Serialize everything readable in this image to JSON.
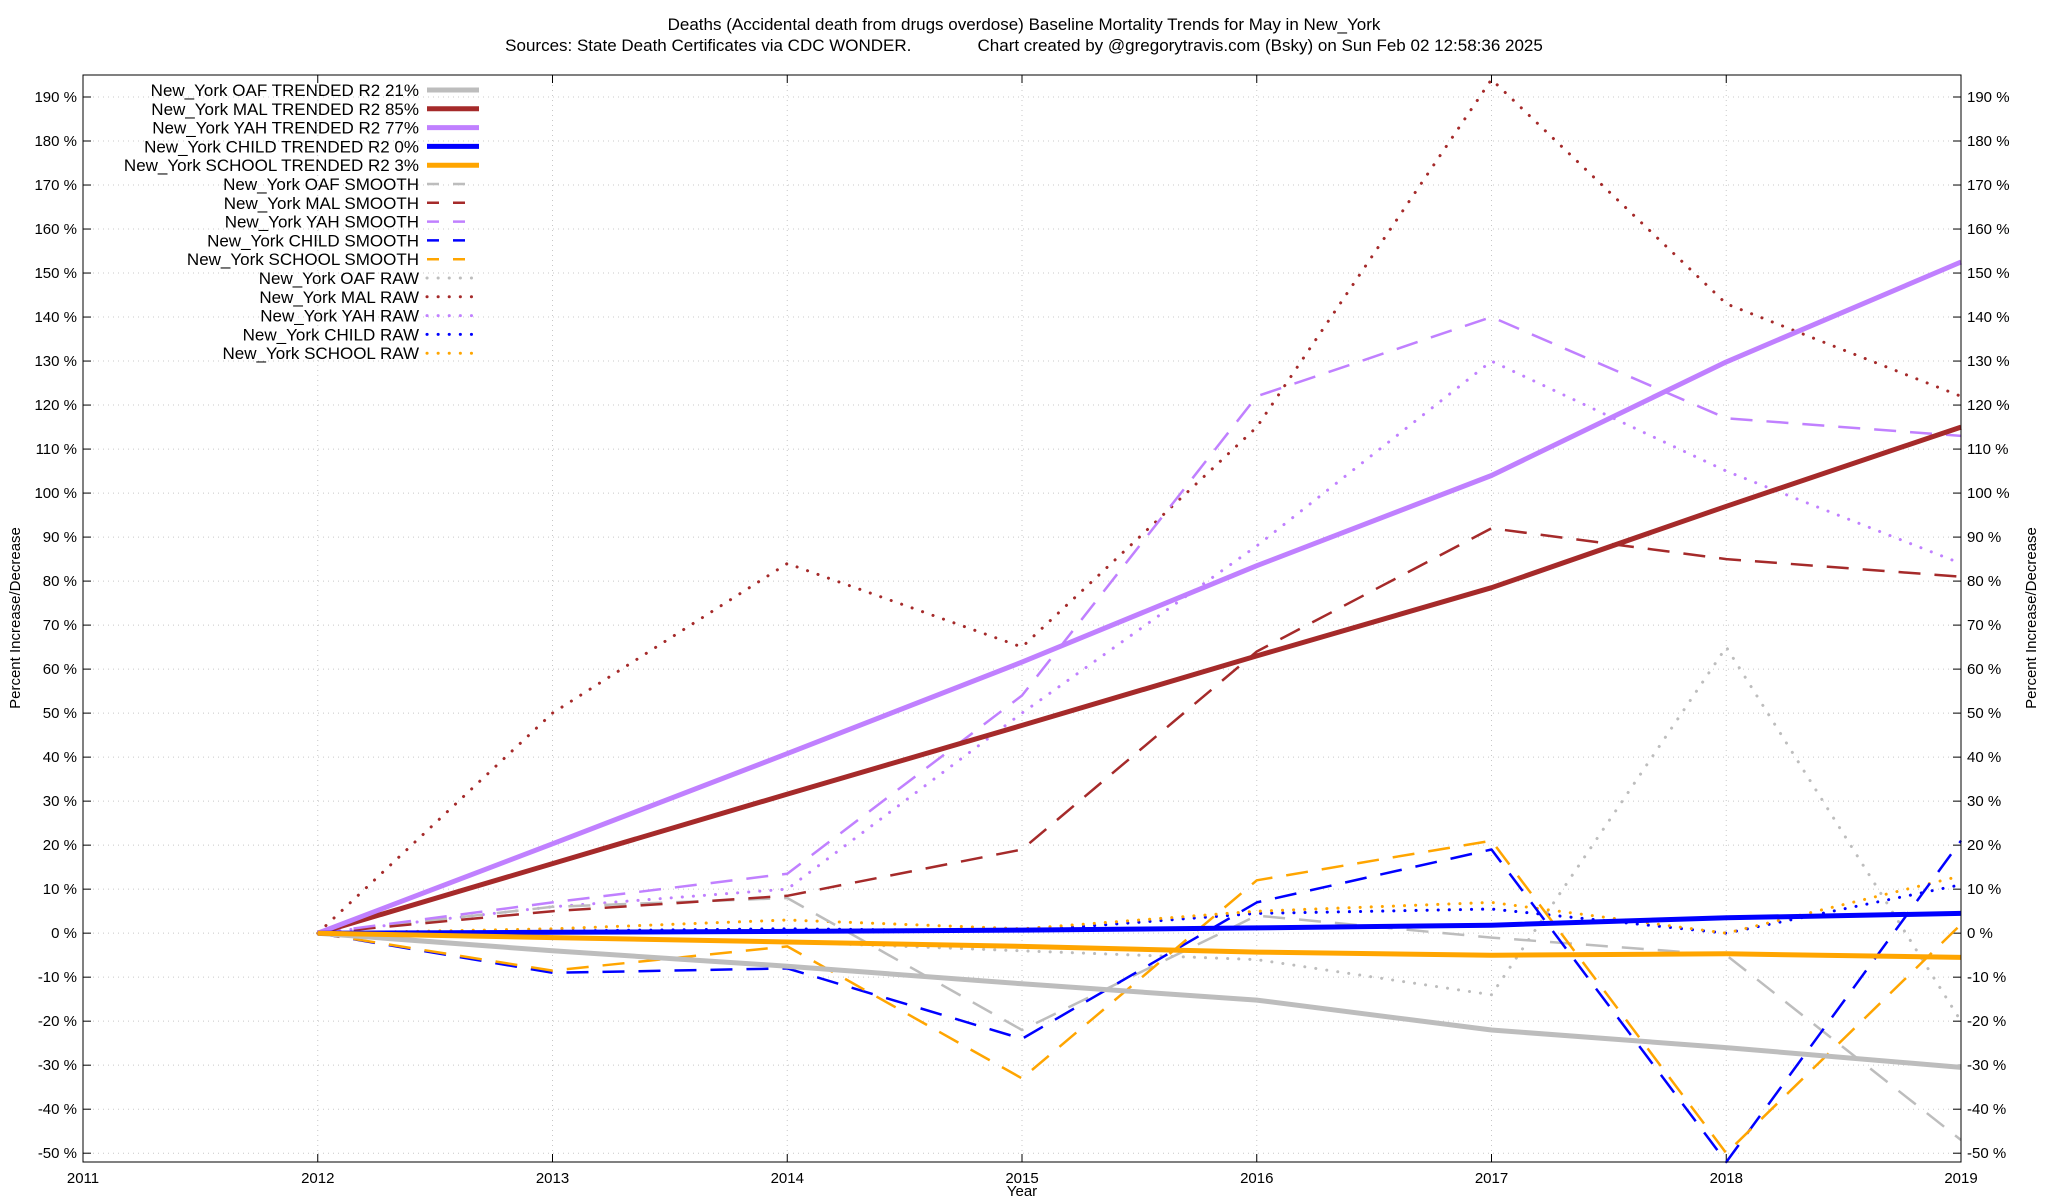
{
  "chart_data": {
    "type": "line",
    "title": "Deaths (Accidental death from drugs overdose)  Baseline Mortality Trends for May in New_York",
    "subtitle": "Sources: State Death Certificates via CDC WONDER.              Chart created by @gregorytravis.com (Bsky) on Sun Feb 02 12:58:36 2025",
    "xlabel": "Year",
    "ylabel": "Percent Increase/Decrease",
    "ylabel_right": "Percent Increase/Decrease",
    "xlim": [
      2011,
      2019
    ],
    "ylim": [
      -52,
      195
    ],
    "x_ticks": [
      "2011",
      "2012",
      "2013",
      "2014",
      "2015",
      "2016",
      "2017",
      "2018",
      "2019"
    ],
    "y_ticks": [
      {
        "value": 190,
        "label": "190 %"
      },
      {
        "value": 180,
        "label": "180 %"
      },
      {
        "value": 170,
        "label": "170 %"
      },
      {
        "value": 160,
        "label": "160 %"
      },
      {
        "value": 150,
        "label": "150 %"
      },
      {
        "value": 140,
        "label": "140 %"
      },
      {
        "value": 130,
        "label": "130 %"
      },
      {
        "value": 120,
        "label": "120 %"
      },
      {
        "value": 110,
        "label": "110 %"
      },
      {
        "value": 100,
        "label": "100 %"
      },
      {
        "value": 90,
        "label": "90 %"
      },
      {
        "value": 80,
        "label": "80 %"
      },
      {
        "value": 70,
        "label": "70 %"
      },
      {
        "value": 60,
        "label": "60 %"
      },
      {
        "value": 50,
        "label": "50 %"
      },
      {
        "value": 40,
        "label": "40 %"
      },
      {
        "value": 30,
        "label": "30 %"
      },
      {
        "value": 20,
        "label": "20 %"
      },
      {
        "value": 10,
        "label": "10 %"
      },
      {
        "value": 0,
        "label": "0 %"
      },
      {
        "value": -10,
        "label": "-10 %"
      },
      {
        "value": -20,
        "label": "-20 %"
      },
      {
        "value": -30,
        "label": "-30 %"
      },
      {
        "value": -40,
        "label": "-40 %"
      },
      {
        "value": -50,
        "label": "-50 %"
      }
    ],
    "grid": true,
    "legend_position": "top-left",
    "series": [
      {
        "name": "New_York OAF TRENDED R2  21%",
        "style": "solid",
        "color": "#bdbdbd",
        "x": [
          2012,
          2013,
          2014,
          2015,
          2016,
          2017,
          2018,
          2019
        ],
        "y": [
          0,
          -4,
          -7.5,
          -11.5,
          -15.2,
          -22,
          -26,
          -30.5
        ]
      },
      {
        "name": "New_York MAL TRENDED R2  85%",
        "style": "solid",
        "color": "#a52a2a",
        "x": [
          2012,
          2013,
          2014,
          2015,
          2016,
          2017,
          2018,
          2019
        ],
        "y": [
          0,
          15.8,
          31.6,
          47.2,
          63,
          78.5,
          97,
          115
        ]
      },
      {
        "name": "New_York YAH TRENDED R2  77%",
        "style": "solid",
        "color": "#c080ff",
        "x": [
          2012,
          2013,
          2014,
          2015,
          2016,
          2017,
          2018,
          2019
        ],
        "y": [
          0,
          20.3,
          40.8,
          61.6,
          83.5,
          104,
          129.8,
          152.5
        ]
      },
      {
        "name": "New_York CHILD TRENDED R2   0%",
        "style": "solid",
        "color": "#0000ff",
        "x": [
          2012,
          2013,
          2014,
          2015,
          2016,
          2017,
          2018,
          2019
        ],
        "y": [
          0,
          0.2,
          0.4,
          0.7,
          1.2,
          1.8,
          3.5,
          4.5
        ]
      },
      {
        "name": "New_York SCHOOL TRENDED R2   3%",
        "style": "solid",
        "color": "#ffa500",
        "x": [
          2012,
          2013,
          2014,
          2015,
          2016,
          2017,
          2018,
          2019
        ],
        "y": [
          0,
          -1,
          -2,
          -3,
          -4.3,
          -5,
          -4.7,
          -5.5
        ]
      },
      {
        "name": "New_York OAF SMOOTH",
        "style": "dashed",
        "color": "#bdbdbd",
        "x": [
          2012,
          2013,
          2014,
          2015,
          2016,
          2017,
          2018,
          2019
        ],
        "y": [
          0,
          6,
          8,
          -22,
          4,
          -1,
          -5,
          -47
        ]
      },
      {
        "name": "New_York MAL SMOOTH",
        "style": "dashed",
        "color": "#a52a2a",
        "x": [
          2012,
          2013,
          2014,
          2015,
          2016,
          2017,
          2018,
          2019
        ],
        "y": [
          0,
          5,
          8.5,
          19,
          64,
          92,
          85,
          81
        ]
      },
      {
        "name": "New_York YAH SMOOTH",
        "style": "dashed",
        "color": "#c080ff",
        "x": [
          2012,
          2013,
          2014,
          2015,
          2016,
          2017,
          2018,
          2019
        ],
        "y": [
          0,
          7,
          13.5,
          54,
          122,
          140,
          117,
          113
        ]
      },
      {
        "name": "New_York CHILD SMOOTH",
        "style": "dashed",
        "color": "#0000ff",
        "x": [
          2012,
          2013,
          2014,
          2015,
          2016,
          2017,
          2018,
          2019
        ],
        "y": [
          0,
          -9,
          -8,
          -24,
          7,
          19,
          -52,
          21
        ]
      },
      {
        "name": "New_York SCHOOL SMOOTH",
        "style": "dashed",
        "color": "#ffa500",
        "x": [
          2012,
          2013,
          2014,
          2015,
          2016,
          2017,
          2018,
          2019
        ],
        "y": [
          0,
          -8.5,
          -3,
          -33,
          12,
          21,
          -50,
          2
        ]
      },
      {
        "name": "New_York OAF RAW",
        "style": "dotted",
        "color": "#bdbdbd",
        "x": [
          2012,
          2013,
          2014,
          2015,
          2016,
          2017,
          2018,
          2019
        ],
        "y": [
          0,
          -1,
          -2,
          -4,
          -6,
          -14,
          65,
          -20
        ]
      },
      {
        "name": "New_York MAL RAW",
        "style": "dotted",
        "color": "#a52a2a",
        "x": [
          2012,
          2013,
          2014,
          2015,
          2016,
          2017,
          2018,
          2019
        ],
        "y": [
          0,
          50,
          84,
          65,
          115,
          194,
          143,
          122
        ]
      },
      {
        "name": "New_York YAH RAW",
        "style": "dotted",
        "color": "#c080ff",
        "x": [
          2012,
          2013,
          2014,
          2015,
          2016,
          2017,
          2018,
          2019
        ],
        "y": [
          0,
          6,
          10,
          50,
          88,
          130,
          105,
          84
        ]
      },
      {
        "name": "New_York CHILD RAW",
        "style": "dotted",
        "color": "#0000ff",
        "x": [
          2012,
          2013,
          2014,
          2015,
          2016,
          2017,
          2018,
          2019
        ],
        "y": [
          0,
          0.5,
          1,
          0.5,
          4.5,
          5.5,
          0,
          11
        ]
      },
      {
        "name": "New_York SCHOOL RAW",
        "style": "dotted",
        "color": "#ffa500",
        "x": [
          2012,
          2013,
          2014,
          2015,
          2016,
          2017,
          2018,
          2019
        ],
        "y": [
          0,
          1,
          3,
          1,
          5,
          7,
          0,
          13
        ]
      }
    ]
  }
}
